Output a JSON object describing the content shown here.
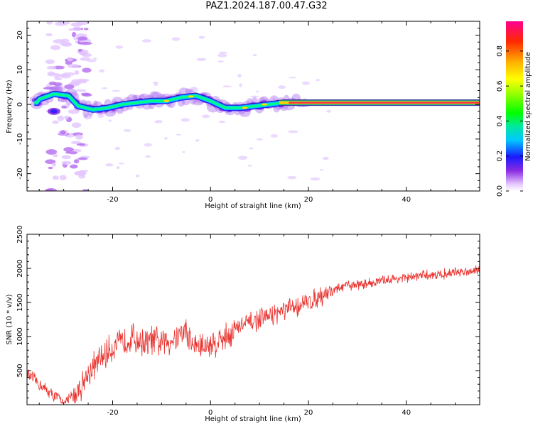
{
  "title": "PAZ1.2024.187.00.47.G32",
  "spectrogram": {
    "type": "heatmap",
    "xlabel": "Height of straight line (km)",
    "ylabel": "Frequency (Hz)",
    "xlim": [
      -37.5,
      55
    ],
    "ylim": [
      -25,
      24
    ],
    "x_ticks": [
      -20,
      0,
      20,
      40
    ],
    "y_ticks": [
      -20,
      -10,
      0,
      10,
      20
    ],
    "ridge": {
      "x": [
        -35,
        -32,
        -29,
        -27,
        -24,
        -21,
        -18,
        -15,
        -12,
        -9,
        -6,
        -3,
        0,
        3,
        6,
        9,
        12,
        15,
        20,
        30,
        40,
        55
      ],
      "y": [
        1.5,
        3,
        2.5,
        -0.5,
        -1.5,
        -1,
        0,
        0.5,
        1,
        1,
        2,
        2.5,
        1,
        -1,
        -1,
        -0.5,
        0,
        0.5,
        0.5,
        0.5,
        0.5,
        0.5
      ]
    },
    "colorbar": {
      "label": "Normalized spectral amplitude",
      "ticks": [
        "0.0",
        "0.2",
        "0.4",
        "0.6",
        "0.8"
      ],
      "tick_values": [
        0.0,
        0.2,
        0.4,
        0.6,
        0.8
      ],
      "range": [
        0,
        0.97
      ]
    }
  },
  "chart_data": {
    "type": "line",
    "xlabel": "Height of straight line (km)",
    "ylabel": "SNR (10 * v/v)",
    "xlim": [
      -37.5,
      55
    ],
    "ylim": [
      0,
      2500
    ],
    "x_ticks": [
      -20,
      0,
      20,
      40
    ],
    "y_ticks": [
      500,
      1000,
      1500,
      2000,
      2500
    ],
    "color": "#e8332f",
    "series": [
      {
        "x": [
          -37.5,
          -35,
          -32,
          -30,
          -28,
          -26,
          -24,
          -22,
          -20,
          -18,
          -16,
          -15,
          -13,
          -12,
          -10,
          -8,
          -6,
          -5,
          -4,
          -2,
          0,
          2,
          4,
          6,
          8,
          10,
          12,
          14,
          16,
          18,
          20,
          22,
          24,
          26,
          28,
          30,
          32,
          34,
          36,
          38,
          40,
          42,
          44,
          46,
          48,
          50,
          52,
          54,
          55
        ],
        "y": [
          450,
          300,
          120,
          70,
          130,
          330,
          550,
          700,
          850,
          900,
          1000,
          950,
          900,
          950,
          900,
          950,
          1050,
          1100,
          900,
          850,
          880,
          950,
          1050,
          1150,
          1200,
          1250,
          1300,
          1350,
          1400,
          1450,
          1500,
          1580,
          1650,
          1700,
          1750,
          1760,
          1780,
          1800,
          1830,
          1850,
          1860,
          1880,
          1900,
          1910,
          1920,
          1940,
          1950,
          1980,
          2000
        ]
      }
    ]
  }
}
